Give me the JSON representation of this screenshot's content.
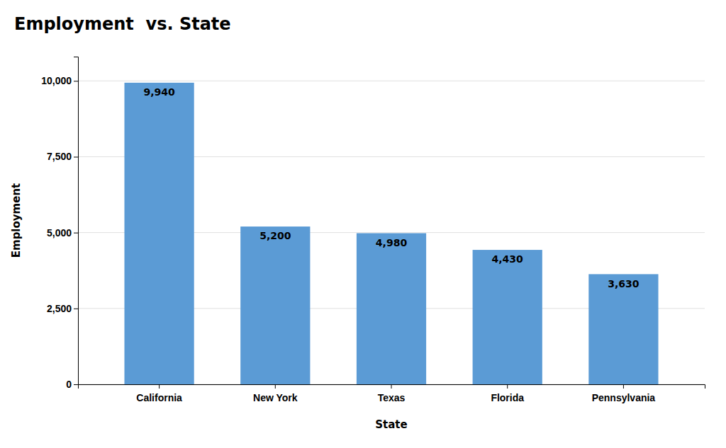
{
  "chart_data": {
    "type": "bar",
    "title": "Employment  vs. State",
    "xlabel": "State",
    "ylabel": "Employment",
    "categories": [
      "California",
      "New York",
      "Texas",
      "Florida",
      "Pennsylvania"
    ],
    "values": [
      9940,
      5200,
      4980,
      4430,
      3630
    ],
    "value_labels": [
      "9,940",
      "5,200",
      "4,980",
      "4,430",
      "3,630"
    ],
    "color": "#5B9BD5",
    "ylim": [
      0,
      10800
    ],
    "yticks": [
      0,
      {
        "value": 2500,
        "label": "2,500"
      },
      {
        "value": 5000,
        "label": "5,000"
      },
      {
        "value": 7500,
        "label": "7,500"
      },
      {
        "value": 10000,
        "label": "10,000"
      }
    ],
    "grid": true,
    "data_labels": true
  }
}
